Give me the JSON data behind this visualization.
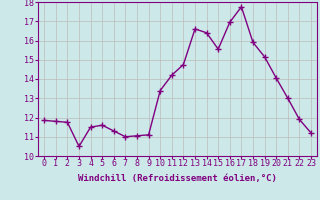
{
  "x": [
    0,
    1,
    2,
    3,
    4,
    5,
    6,
    7,
    8,
    9,
    10,
    11,
    12,
    13,
    14,
    15,
    16,
    17,
    18,
    19,
    20,
    21,
    22,
    23
  ],
  "y": [
    11.85,
    11.8,
    11.75,
    10.5,
    11.5,
    11.6,
    11.3,
    11.0,
    11.05,
    11.1,
    13.4,
    14.2,
    14.75,
    16.6,
    16.4,
    15.55,
    16.95,
    17.75,
    15.9,
    15.15,
    14.05,
    13.0,
    11.9,
    11.2
  ],
  "line_color": "#800080",
  "marker": "+",
  "marker_size": 5,
  "xlabel": "Windchill (Refroidissement éolien,°C)",
  "xlabel_fontsize": 6.5,
  "xtick_labels": [
    "0",
    "1",
    "2",
    "3",
    "4",
    "5",
    "6",
    "7",
    "8",
    "9",
    "10",
    "11",
    "12",
    "13",
    "14",
    "15",
    "16",
    "17",
    "18",
    "19",
    "20",
    "21",
    "22",
    "23"
  ],
  "ylim": [
    10,
    18
  ],
  "ytick_values": [
    10,
    11,
    12,
    13,
    14,
    15,
    16,
    17,
    18
  ],
  "background_color": "#cce8e8",
  "grid_color": "#bbbbbb",
  "tick_fontsize": 6.0
}
